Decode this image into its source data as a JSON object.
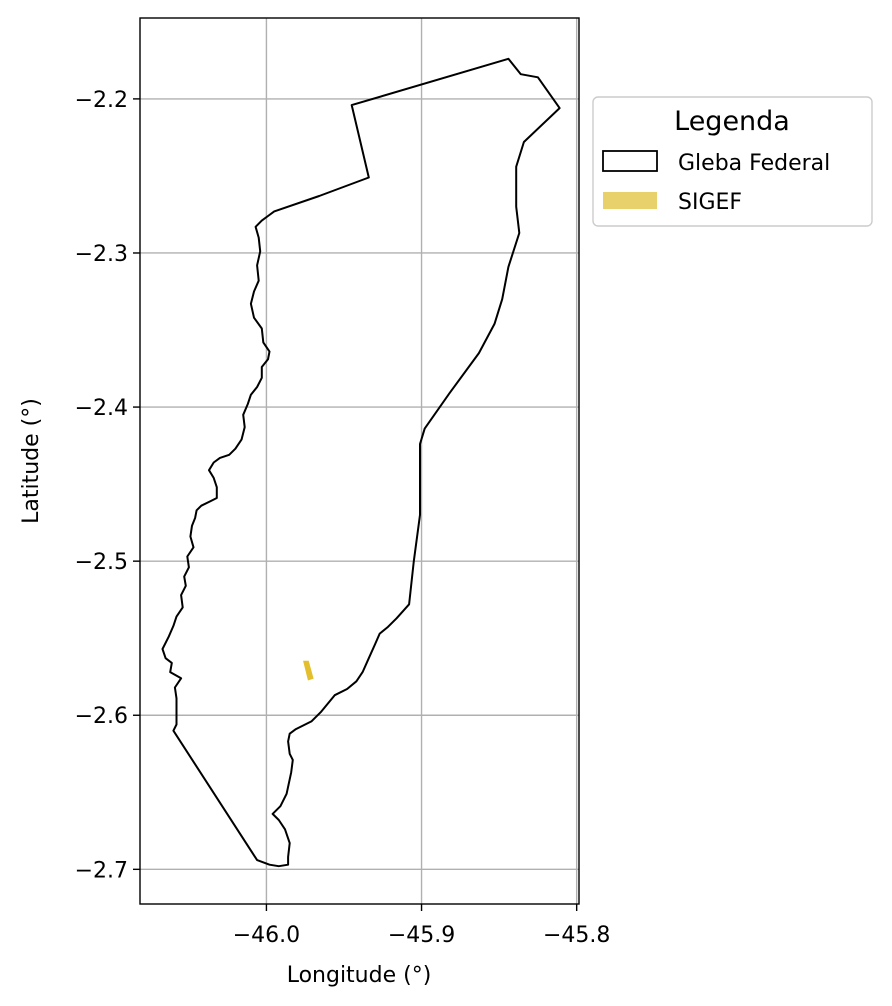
{
  "chart_data": {
    "type": "map",
    "xlabel": "Longitude (°)",
    "ylabel": "Latitude (°)",
    "xlim": [
      -46.0815,
      -45.7985
    ],
    "ylim": [
      -2.7225,
      -2.1475
    ],
    "x_ticks": [
      {
        "value": -46.0,
        "label": "−46.0"
      },
      {
        "value": -45.9,
        "label": "−45.9"
      },
      {
        "value": -45.8,
        "label": "−45.8"
      }
    ],
    "y_ticks": [
      {
        "value": -2.2,
        "label": "−2.2"
      },
      {
        "value": -2.3,
        "label": "−2.3"
      },
      {
        "value": -2.4,
        "label": "−2.4"
      },
      {
        "value": -2.5,
        "label": "−2.5"
      },
      {
        "value": -2.6,
        "label": "−2.6"
      },
      {
        "value": -2.7,
        "label": "−2.7"
      }
    ],
    "grid": true,
    "legend": {
      "title": "Legenda",
      "placement": "outside-right-top",
      "items": [
        {
          "label": "Gleba Federal",
          "style": "outline",
          "color": "#000000"
        },
        {
          "label": "SIGEF",
          "style": "fill",
          "color": "#e8d06a"
        }
      ]
    },
    "layers": {
      "gleba_federal": {
        "name": "Gleba Federal",
        "edge_color": "#000000",
        "fill_color": "none",
        "outline": [
          [
            -45.995,
            -2.273
          ],
          [
            -45.966,
            -2.263
          ],
          [
            -45.934,
            -2.251
          ],
          [
            -45.945,
            -2.204
          ],
          [
            -45.844,
            -2.174
          ],
          [
            -45.836,
            -2.184
          ],
          [
            -45.825,
            -2.186
          ],
          [
            -45.811,
            -2.206
          ],
          [
            -45.834,
            -2.228
          ],
          [
            -45.839,
            -2.244
          ],
          [
            -45.839,
            -2.27
          ],
          [
            -45.837,
            -2.287
          ],
          [
            -45.844,
            -2.309
          ],
          [
            -45.848,
            -2.33
          ],
          [
            -45.853,
            -2.346
          ],
          [
            -45.863,
            -2.365
          ],
          [
            -45.882,
            -2.391
          ],
          [
            -45.898,
            -2.414
          ],
          [
            -45.901,
            -2.424
          ],
          [
            -45.901,
            -2.452
          ],
          [
            -45.901,
            -2.47
          ],
          [
            -45.905,
            -2.5
          ],
          [
            -45.908,
            -2.528
          ],
          [
            -45.916,
            -2.537
          ],
          [
            -45.922,
            -2.543
          ],
          [
            -45.927,
            -2.547
          ],
          [
            -45.93,
            -2.554
          ],
          [
            -45.934,
            -2.563
          ],
          [
            -45.938,
            -2.572
          ],
          [
            -45.942,
            -2.578
          ],
          [
            -45.948,
            -2.583
          ],
          [
            -45.956,
            -2.587
          ],
          [
            -45.965,
            -2.598
          ],
          [
            -45.971,
            -2.604
          ],
          [
            -45.981,
            -2.609
          ],
          [
            -45.985,
            -2.612
          ],
          [
            -45.986,
            -2.617
          ],
          [
            -45.985,
            -2.625
          ],
          [
            -45.983,
            -2.629
          ],
          [
            -45.984,
            -2.637
          ],
          [
            -45.987,
            -2.651
          ],
          [
            -45.991,
            -2.659
          ],
          [
            -45.996,
            -2.664
          ],
          [
            -45.992,
            -2.668
          ],
          [
            -45.988,
            -2.674
          ],
          [
            -45.985,
            -2.683
          ],
          [
            -45.986,
            -2.692
          ],
          [
            -45.986,
            -2.697
          ],
          [
            -45.992,
            -2.698
          ],
          [
            -45.998,
            -2.697
          ],
          [
            -46.006,
            -2.694
          ],
          [
            -46.06,
            -2.61
          ],
          [
            -46.058,
            -2.606
          ],
          [
            -46.058,
            -2.598
          ],
          [
            -46.058,
            -2.589
          ],
          [
            -46.059,
            -2.582
          ],
          [
            -46.055,
            -2.576
          ],
          [
            -46.062,
            -2.572
          ],
          [
            -46.061,
            -2.566
          ],
          [
            -46.065,
            -2.563
          ],
          [
            -46.067,
            -2.557
          ],
          [
            -46.063,
            -2.549
          ],
          [
            -46.06,
            -2.542
          ],
          [
            -46.058,
            -2.536
          ],
          [
            -46.054,
            -2.53
          ],
          [
            -46.055,
            -2.522
          ],
          [
            -46.052,
            -2.516
          ],
          [
            -46.053,
            -2.51
          ],
          [
            -46.05,
            -2.504
          ],
          [
            -46.051,
            -2.497
          ],
          [
            -46.047,
            -2.491
          ],
          [
            -46.049,
            -2.484
          ],
          [
            -46.048,
            -2.477
          ],
          [
            -46.046,
            -2.472
          ],
          [
            -46.045,
            -2.467
          ],
          [
            -46.042,
            -2.464
          ],
          [
            -46.036,
            -2.461
          ],
          [
            -46.032,
            -2.459
          ],
          [
            -46.032,
            -2.452
          ],
          [
            -46.034,
            -2.446
          ],
          [
            -46.037,
            -2.441
          ],
          [
            -46.034,
            -2.436
          ],
          [
            -46.03,
            -2.433
          ],
          [
            -46.024,
            -2.431
          ],
          [
            -46.02,
            -2.427
          ],
          [
            -46.016,
            -2.421
          ],
          [
            -46.014,
            -2.413
          ],
          [
            -46.015,
            -2.405
          ],
          [
            -46.012,
            -2.398
          ],
          [
            -46.01,
            -2.392
          ],
          [
            -46.006,
            -2.387
          ],
          [
            -46.003,
            -2.381
          ],
          [
            -46.003,
            -2.374
          ],
          [
            -45.999,
            -2.369
          ],
          [
            -45.998,
            -2.364
          ],
          [
            -46.002,
            -2.358
          ],
          [
            -46.003,
            -2.349
          ],
          [
            -46.008,
            -2.342
          ],
          [
            -46.01,
            -2.333
          ],
          [
            -46.008,
            -2.325
          ],
          [
            -46.005,
            -2.318
          ],
          [
            -46.006,
            -2.308
          ],
          [
            -46.004,
            -2.299
          ],
          [
            -46.005,
            -2.29
          ],
          [
            -46.007,
            -2.283
          ],
          [
            -46.003,
            -2.279
          ],
          [
            -45.999,
            -2.276
          ],
          [
            -45.995,
            -2.273
          ]
        ]
      },
      "sigef": {
        "name": "SIGEF",
        "fill_color": "#e3bf2e",
        "parcels": [
          [
            [
              -45.976,
              -2.565
            ],
            [
              -45.973,
              -2.565
            ],
            [
              -45.97,
              -2.576
            ],
            [
              -45.973,
              -2.577
            ]
          ]
        ]
      }
    }
  }
}
